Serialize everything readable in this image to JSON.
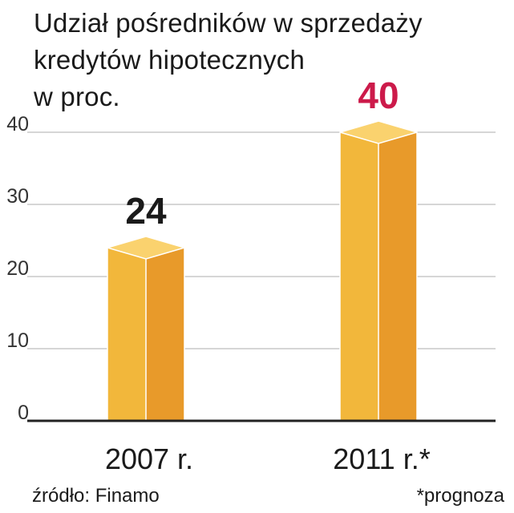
{
  "chart_data": {
    "type": "bar",
    "title_lines": [
      "Udział pośredników w sprzedaży",
      "kredytów hipotecznych",
      "w proc."
    ],
    "categories": [
      "2007 r.",
      "2011 r.*"
    ],
    "values": [
      24,
      40
    ],
    "value_labels": [
      "24",
      "40"
    ],
    "ylim": [
      0,
      40
    ],
    "yticks": [
      0,
      10,
      20,
      30,
      40
    ],
    "ytick_labels": [
      "0",
      "10",
      "20",
      "30",
      "40"
    ],
    "grid": true,
    "xlabel": "",
    "ylabel": "",
    "source": "źródło: Finamo",
    "note": "*prognoza"
  },
  "colors": {
    "bar_front": "#f2b73b",
    "bar_side": "#e89a2a",
    "bar_top": "#fad26e",
    "grid": "#bdbdbd",
    "axis": "#222222",
    "label_normal": "#1a1a1a",
    "label_highlight": "#cc1a4a"
  }
}
